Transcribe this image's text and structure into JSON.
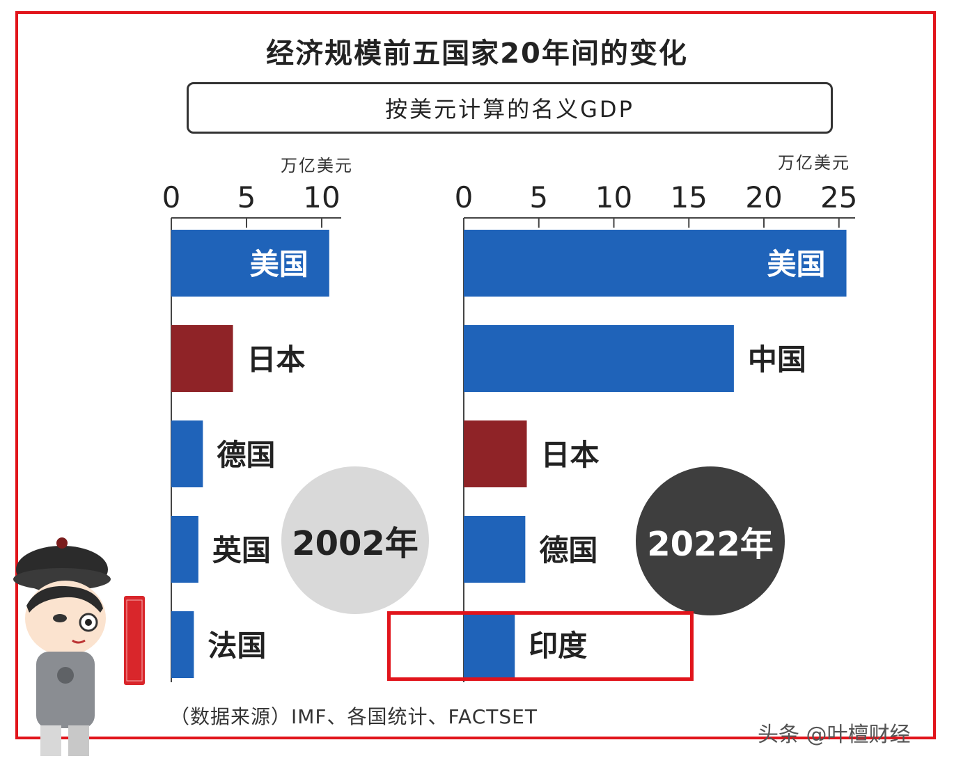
{
  "title": "经济规模前五国家20年间的变化",
  "subtitle": "按美元计算的名义GDP",
  "source": "（数据来源）IMF、各国统计、FACTSET",
  "watermark": "头条 @叶檀财经",
  "seal_text": "叶檀财经",
  "colors": {
    "blue": "#1f63b9",
    "dark_red": "#8f2327",
    "frame_red": "#e1141b",
    "badge_light": "#d9d9d9",
    "badge_dark": "#3e3e3e"
  },
  "chart_data": [
    {
      "type": "bar",
      "orientation": "horizontal",
      "year_label": "2002年",
      "unit": "万亿美元",
      "xlim": [
        0,
        10.5
      ],
      "ticks": [
        0,
        5,
        10
      ],
      "categories": [
        "美国",
        "日本",
        "德国",
        "英国",
        "法国"
      ],
      "values": [
        10.8,
        4.1,
        2.1,
        1.8,
        1.5
      ],
      "bar_colors": [
        "blue",
        "dark_red",
        "blue",
        "blue",
        "blue"
      ],
      "label_inside": [
        true,
        false,
        false,
        false,
        false
      ]
    },
    {
      "type": "bar",
      "orientation": "horizontal",
      "year_label": "2022年",
      "unit": "万亿美元",
      "xlim": [
        0,
        25.5
      ],
      "ticks": [
        0,
        5,
        10,
        15,
        20,
        25
      ],
      "categories": [
        "美国",
        "中国",
        "日本",
        "德国",
        "印度"
      ],
      "values": [
        25.5,
        18.0,
        4.2,
        4.1,
        3.4
      ],
      "bar_colors": [
        "blue",
        "blue",
        "dark_red",
        "blue",
        "blue"
      ],
      "label_inside": [
        true,
        false,
        false,
        false,
        false
      ],
      "highlighted": "印度"
    }
  ]
}
